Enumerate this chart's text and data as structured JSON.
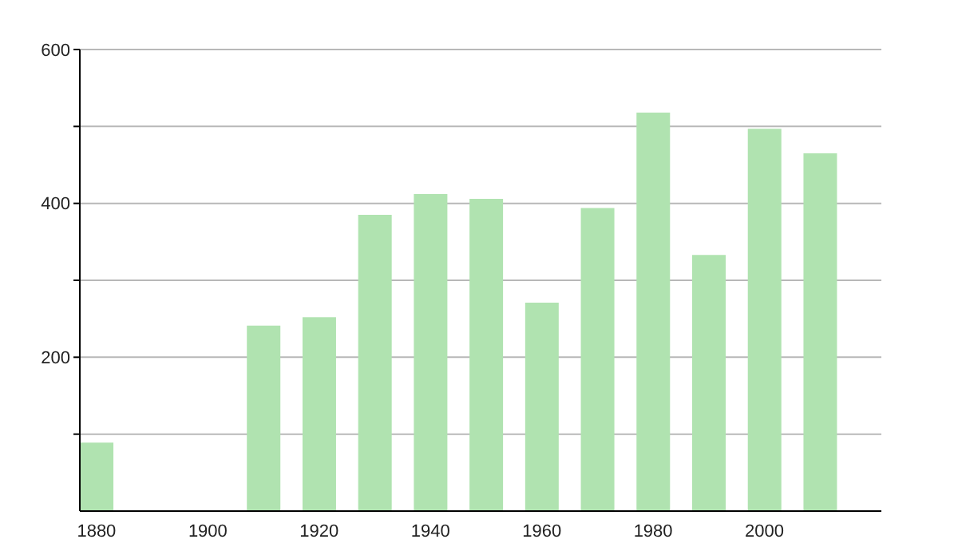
{
  "chart_data": {
    "type": "bar",
    "x": [
      1880,
      1910,
      1920,
      1930,
      1940,
      1950,
      1960,
      1970,
      1980,
      1990,
      2000,
      2010
    ],
    "values": [
      89,
      241,
      252,
      385,
      412,
      406,
      271,
      394,
      518,
      333,
      497,
      465
    ],
    "color": "#b0e3b0",
    "xlim": [
      1877,
      2021
    ],
    "xticks": [
      1880,
      1900,
      1920,
      1940,
      1960,
      1980,
      2000
    ],
    "ylim": [
      0,
      600
    ],
    "yticks": [
      {
        "value": 100,
        "label": null
      },
      200,
      {
        "value": 300,
        "label": null
      },
      400,
      {
        "value": 500,
        "label": null
      },
      600
    ],
    "grid": "y"
  }
}
